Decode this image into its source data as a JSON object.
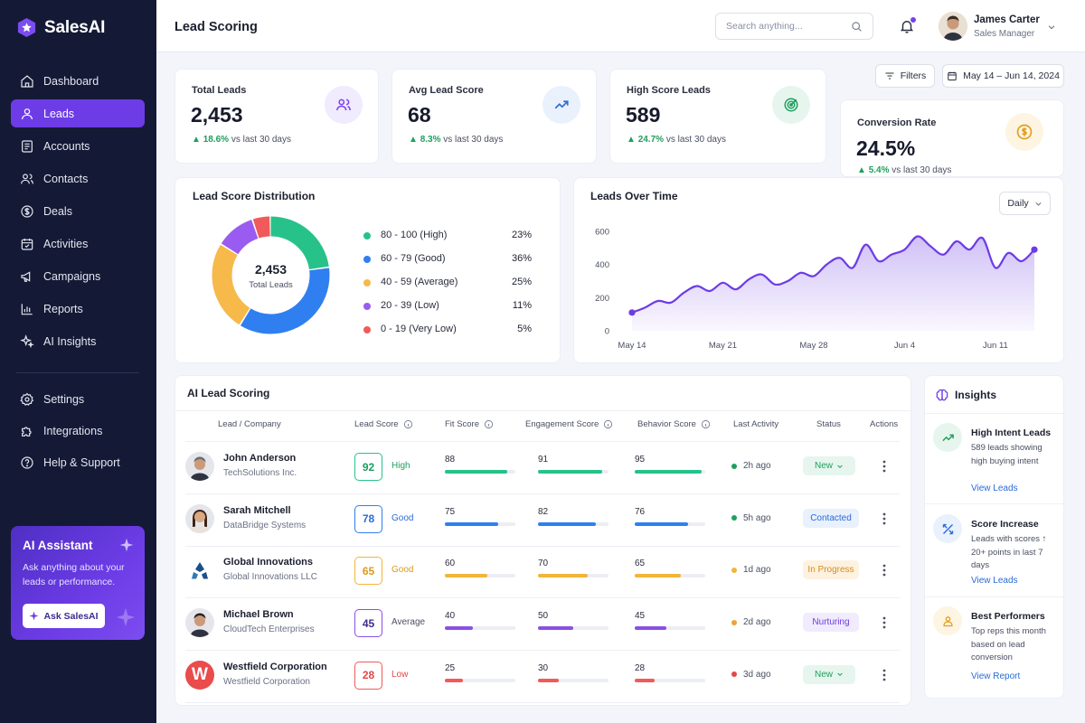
{
  "app": {
    "name": "SalesAI"
  },
  "sidebar": {
    "items": [
      {
        "label": "Dashboard",
        "icon": "home-icon"
      },
      {
        "label": "Leads",
        "icon": "user-icon",
        "active": true
      },
      {
        "label": "Accounts",
        "icon": "users-icon"
      },
      {
        "label": "Contacts",
        "icon": "contact-icon"
      },
      {
        "label": "Deals",
        "icon": "dollar-icon"
      },
      {
        "label": "Activities",
        "icon": "calendar-check-icon"
      },
      {
        "label": "Campaigns",
        "icon": "megaphone-icon"
      },
      {
        "label": "Reports",
        "icon": "bar-chart-icon"
      },
      {
        "label": "AI Insights",
        "icon": "sparkle-icon"
      }
    ],
    "bottom_items": [
      {
        "label": "Settings",
        "icon": "gear-icon"
      },
      {
        "label": "Integrations",
        "icon": "puzzle-icon"
      },
      {
        "label": "Help & Support",
        "icon": "help-icon"
      }
    ],
    "ai_assistant": {
      "title": "AI Assistant",
      "description": "Ask anything about your leads or performance.",
      "button_label": "Ask SalesAI"
    }
  },
  "header": {
    "title": "Lead Scoring",
    "search_placeholder": "Search anything...",
    "user": {
      "name": "James Carter",
      "role": "Sales Manager"
    }
  },
  "toolbar": {
    "filters_label": "Filters",
    "date_range": "May 14 – Jun 14, 2024"
  },
  "stats": [
    {
      "label": "Total Leads",
      "value": "2,453",
      "change": "18.6%",
      "suffix": "vs last 30 days",
      "icon": "users-icon",
      "icon_color": "#7b3ff2",
      "icon_bg": "#f0ebfd"
    },
    {
      "label": "Avg Lead Score",
      "value": "68",
      "change": "8.3%",
      "suffix": "vs last 30 days",
      "icon": "trend-up-icon",
      "icon_color": "#2a6bd8",
      "icon_bg": "#e9f1fc"
    },
    {
      "label": "High Score Leads",
      "value": "589",
      "change": "24.7%",
      "suffix": "vs last 30 days",
      "icon": "target-icon",
      "icon_color": "#1e9f5e",
      "icon_bg": "#e6f6ee"
    },
    {
      "label": "Conversion Rate",
      "value": "24.5%",
      "change": "5.4%",
      "suffix": "vs last 30 days",
      "icon": "coin-icon",
      "icon_color": "#e0a020",
      "icon_bg": "#fdf4e2"
    }
  ],
  "distribution": {
    "title": "Lead Score Distribution",
    "center_value": "2,453",
    "center_label": "Total Leads",
    "legend": [
      {
        "label": "80 - 100 (High)",
        "pct": "23%",
        "value": 23,
        "color": "#27c28a"
      },
      {
        "label": "60 - 79 (Good)",
        "pct": "36%",
        "value": 36,
        "color": "#2f7ff0"
      },
      {
        "label": "40 - 59 (Average)",
        "pct": "25%",
        "value": 25,
        "color": "#f6b94a"
      },
      {
        "label": "20 - 39 (Low)",
        "pct": "11%",
        "value": 11,
        "color": "#9a5cf0"
      },
      {
        "label": "0 - 19 (Very Low)",
        "pct": "5%",
        "value": 5,
        "color": "#f05a5a"
      }
    ]
  },
  "chart_data": {
    "type": "area",
    "title": "Leads Over Time",
    "interval": "Daily",
    "x": [
      "May 14",
      "May 15",
      "May 16",
      "May 17",
      "May 18",
      "May 19",
      "May 20",
      "May 21",
      "May 22",
      "May 23",
      "May 24",
      "May 25",
      "May 26",
      "May 27",
      "May 28",
      "May 29",
      "May 30",
      "May 31",
      "Jun 1",
      "Jun 2",
      "Jun 3",
      "Jun 4",
      "Jun 5",
      "Jun 6",
      "Jun 7",
      "Jun 8",
      "Jun 9",
      "Jun 10",
      "Jun 11",
      "Jun 12",
      "Jun 13",
      "Jun 14"
    ],
    "values": [
      110,
      140,
      180,
      170,
      230,
      270,
      240,
      290,
      250,
      310,
      340,
      280,
      300,
      350,
      330,
      400,
      440,
      380,
      520,
      420,
      460,
      490,
      570,
      510,
      460,
      540,
      490,
      560,
      380,
      470,
      420,
      490
    ],
    "xticks": [
      "May 14",
      "May 21",
      "May 28",
      "Jun 4",
      "Jun 11"
    ],
    "yticks": [
      "0",
      "200",
      "400",
      "600"
    ],
    "ylim": [
      0,
      600
    ],
    "color": "#6d3ce6"
  },
  "table": {
    "title": "AI Lead Scoring",
    "columns": [
      "Lead / Company",
      "Lead Score",
      "Fit Score",
      "Engagement Score",
      "Behavior Score",
      "Last Activity",
      "Status",
      "Actions"
    ],
    "rows": [
      {
        "name": "John Anderson",
        "company": "TechSolutions Inc.",
        "score": "92",
        "tier": "High",
        "tier_color": "#1e9f5e",
        "fit": 88,
        "engagement": 91,
        "behavior": 95,
        "bar_color": "#27c28a",
        "activity": "2h ago",
        "activity_color": "#1e9f5e",
        "status": "New",
        "status_color": "#1e9f5e",
        "status_bg": "#e6f6ee",
        "avatar": "avatar-john"
      },
      {
        "name": "Sarah Mitchell",
        "company": "DataBridge Systems",
        "score": "78",
        "tier": "Good",
        "tier_color": "#2a6bd8",
        "fit": 75,
        "engagement": 82,
        "behavior": 76,
        "bar_color": "#2f7ff0",
        "activity": "5h ago",
        "activity_color": "#1e9f5e",
        "status": "Contacted",
        "status_color": "#2a6bd8",
        "status_bg": "#e9f1fc",
        "avatar": "avatar-sarah"
      },
      {
        "name": "Global Innovations",
        "company": "Global Innovations LLC",
        "score": "65",
        "tier": "Good",
        "tier_color": "#d99a1c",
        "fit": 60,
        "engagement": 70,
        "behavior": 65,
        "bar_color": "#f2b53a",
        "activity": "1d ago",
        "activity_color": "#f2b53a",
        "status": "In Progress",
        "status_color": "#d98a1c",
        "status_bg": "#fdf2e0",
        "avatar": "logo-global"
      },
      {
        "name": "Michael Brown",
        "company": "CloudTech Enterprises",
        "score": "45",
        "tier": "Average",
        "tier_color": "#4b4f63",
        "fit": 40,
        "engagement": 50,
        "behavior": 45,
        "bar_color": "#8a4fe6",
        "activity": "2d ago",
        "activity_color": "#f2a03a",
        "status": "Nurturing",
        "status_color": "#6d3ce6",
        "status_bg": "#f0ebfd",
        "avatar": "avatar-michael"
      },
      {
        "name": "Westfield Corporation",
        "company": "Westfield Corporation",
        "score": "28",
        "tier": "Low",
        "tier_color": "#e04848",
        "fit": 25,
        "engagement": 30,
        "behavior": 28,
        "bar_color": "#f05a5a",
        "activity": "3d ago",
        "activity_color": "#e04848",
        "status": "New",
        "status_color": "#1e9f5e",
        "status_bg": "#e6f6ee",
        "avatar": "logo-westfield",
        "logo_letter": "W"
      }
    ]
  },
  "insights": {
    "title": "Insights",
    "items": [
      {
        "title": "High Intent Leads",
        "description": "589 leads showing high buying intent",
        "link": "View Leads",
        "icon": "trend-up-icon",
        "color": "#1e9f5e",
        "bg": "#e6f6ee"
      },
      {
        "title": "Score Increase",
        "description": "Leads with scores ↑ 20+ points in last 7 days",
        "link": "View Leads",
        "icon": "arrows-icon",
        "color": "#2a6bd8",
        "bg": "#e9f1fc"
      },
      {
        "title": "Best Performers",
        "description": "Top reps this month based on lead conversion",
        "link": "View Report",
        "icon": "person-badge-icon",
        "color": "#e0a020",
        "bg": "#fdf4e2"
      }
    ]
  }
}
